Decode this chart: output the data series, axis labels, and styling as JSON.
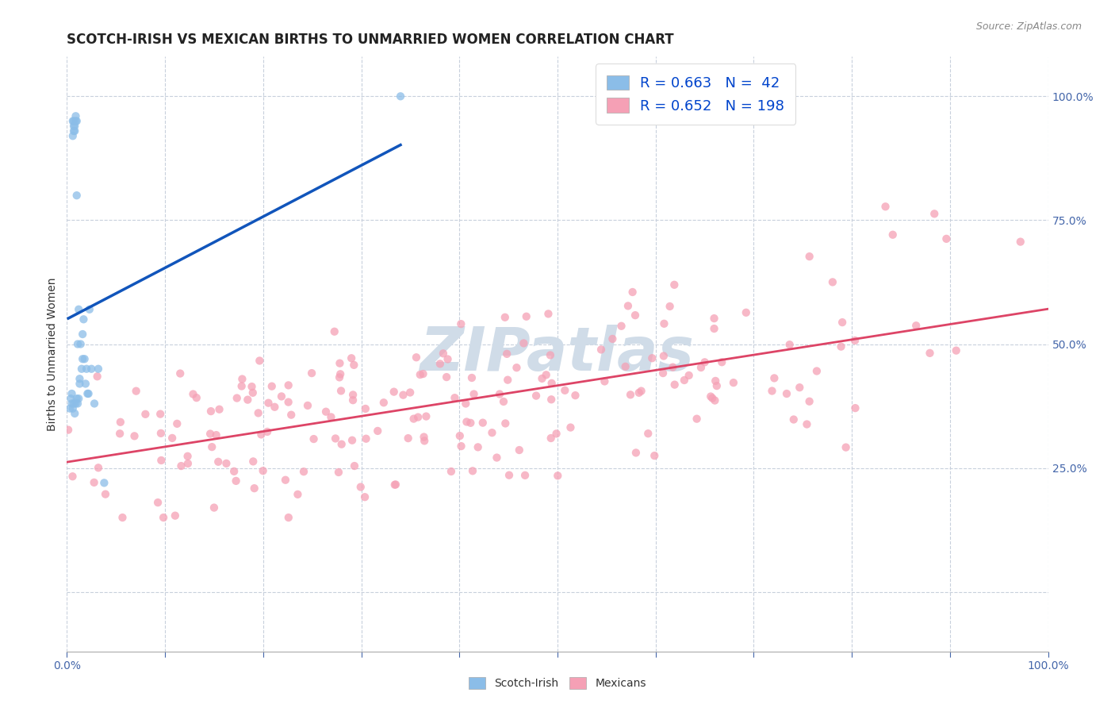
{
  "title": "SCOTCH-IRISH VS MEXICAN BIRTHS TO UNMARRIED WOMEN CORRELATION CHART",
  "source": "Source: ZipAtlas.com",
  "ylabel": "Births to Unmarried Women",
  "xlim": [
    0,
    1
  ],
  "ylim": [
    -0.12,
    1.08
  ],
  "bg_color": "#ffffff",
  "grid_color": "#c8d0dc",
  "watermark_text": "ZIPatlas",
  "watermark_color": "#d0dce8",
  "scotch_irish_color": "#8bbde8",
  "scotch_irish_line_color": "#1155bb",
  "mexicans_color": "#f5a0b5",
  "mexicans_line_color": "#dd4466",
  "legend_R_color": "#0044cc",
  "scotch_irish_R": 0.663,
  "scotch_irish_N": 42,
  "mexicans_R": 0.652,
  "mexicans_N": 198,
  "scotch_irish_x": [
    0.003,
    0.004,
    0.005,
    0.005,
    0.006,
    0.006,
    0.006,
    0.007,
    0.007,
    0.007,
    0.007,
    0.008,
    0.008,
    0.008,
    0.009,
    0.009,
    0.009,
    0.01,
    0.01,
    0.01,
    0.011,
    0.011,
    0.012,
    0.012,
    0.013,
    0.013,
    0.014,
    0.015,
    0.016,
    0.016,
    0.017,
    0.018,
    0.019,
    0.02,
    0.021,
    0.022,
    0.023,
    0.025,
    0.028,
    0.032,
    0.038,
    0.34
  ],
  "scotch_irish_y": [
    0.37,
    0.39,
    0.4,
    0.38,
    0.92,
    0.95,
    0.37,
    0.95,
    0.94,
    0.93,
    0.38,
    0.93,
    0.94,
    0.36,
    0.95,
    0.96,
    0.38,
    0.95,
    0.8,
    0.39,
    0.5,
    0.38,
    0.57,
    0.39,
    0.42,
    0.43,
    0.5,
    0.45,
    0.47,
    0.52,
    0.55,
    0.47,
    0.42,
    0.45,
    0.4,
    0.4,
    0.57,
    0.45,
    0.38,
    0.45,
    0.22,
    1.0
  ],
  "title_fontsize": 12,
  "ylabel_fontsize": 10,
  "tick_fontsize": 10,
  "legend_fontsize": 13,
  "watermark_fontsize": 55,
  "source_fontsize": 9,
  "scatter_size": 55,
  "scatter_alpha": 0.75
}
